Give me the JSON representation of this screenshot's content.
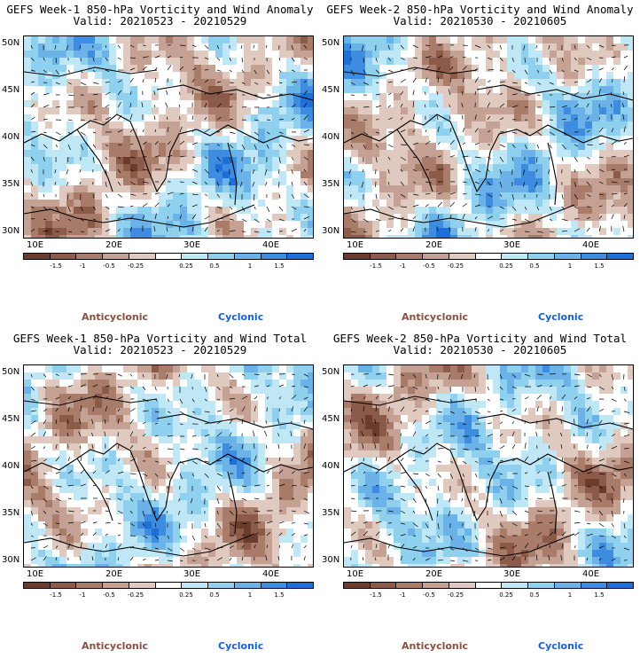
{
  "panels": [
    {
      "title_line1": "GEFS Week-1 850-hPa Vorticity and Wind Anomaly",
      "title_line2": "Valid: 20210523 - 20210529"
    },
    {
      "title_line1": "GEFS Week-2 850-hPa Vorticity and Wind Anomaly",
      "title_line2": "Valid: 20210530 - 20210605"
    },
    {
      "title_line1": "GEFS Week-1 850-hPa Vorticity and Wind Total",
      "title_line2": "Valid: 20210523 - 20210529"
    },
    {
      "title_line1": "GEFS Week-2 850-hPa Vorticity and Wind Total",
      "title_line2": "Valid: 20210530 - 20210605"
    }
  ],
  "axes": {
    "lat_labels": [
      "50N",
      "45N",
      "40N",
      "35N",
      "30N"
    ],
    "lon_labels": [
      "10E",
      "20E",
      "30E",
      "40E"
    ]
  },
  "colorbar": {
    "labels": [
      "-1.5",
      "-1",
      "-0.5",
      "-0.25",
      "0.25",
      "0.5",
      "1",
      "1.5"
    ],
    "colors": [
      "#6b3b2c",
      "#8c5a48",
      "#a97c6a",
      "#c4a193",
      "#e0c9bf",
      "#ffffff",
      "#bfe7f5",
      "#8fd0ee",
      "#6ab2e8",
      "#3e8ce0",
      "#1e6fd8"
    ]
  },
  "legend": {
    "anticyclonic": "Anticyclonic",
    "cyclonic": "Cyclonic"
  }
}
